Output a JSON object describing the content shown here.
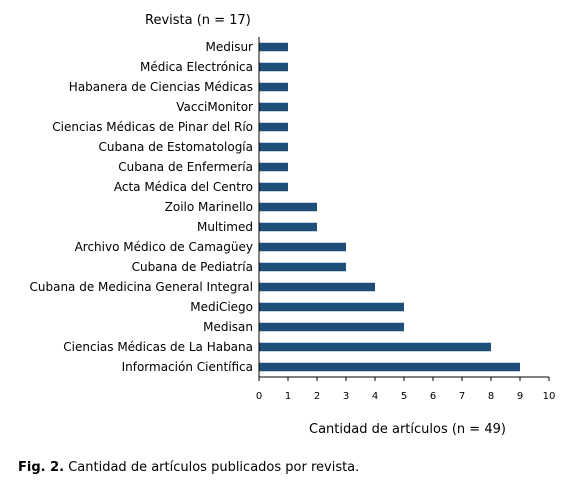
{
  "chart_data": {
    "type": "bar",
    "orientation": "horizontal",
    "y_title": "Revista (n = 17)",
    "xlabel": "Cantidad de artículos (n = 49)",
    "xlim": [
      0,
      10
    ],
    "xticks": [
      0,
      1,
      2,
      3,
      4,
      5,
      6,
      7,
      8,
      9,
      10
    ],
    "grid": false,
    "bar_color": "#1f4e79",
    "categories": [
      "Medisur",
      "Médica Electrónica",
      "Habanera de Ciencias Médicas",
      "VacciMonitor",
      "Ciencias Médicas de Pinar del Río",
      "Cubana de Estomatología",
      "Cubana de Enfermería",
      "Acta Médica del Centro",
      "Zoilo Marinello",
      "Multimed",
      "Archivo Médico de Camagüey",
      "Cubana de Pediatría",
      "Cubana de Medicina General Integral",
      "MediCiego",
      "Medisan",
      "Ciencias Médicas de La Habana",
      "Información Científica"
    ],
    "values": [
      1,
      1,
      1,
      1,
      1,
      1,
      1,
      1,
      2,
      2,
      3,
      3,
      4,
      5,
      5,
      8,
      9
    ]
  },
  "caption": {
    "label": "Fig. 2.",
    "text": " Cantidad de artículos publicados por revista."
  }
}
